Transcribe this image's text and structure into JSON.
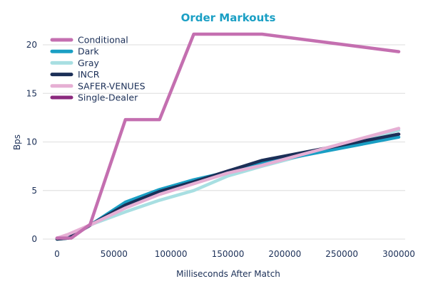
{
  "chart_data": {
    "type": "line",
    "title": "Order Markouts",
    "xlabel": "Milliseconds After Match",
    "ylabel": "Bps",
    "xlim": [
      0,
      300000
    ],
    "ylim": [
      0,
      21.5
    ],
    "x_ticks": [
      0,
      50000,
      100000,
      150000,
      200000,
      250000,
      300000
    ],
    "y_ticks": [
      0,
      5,
      10,
      15,
      20
    ],
    "grid": "horizontal",
    "legend_position": "top-left",
    "title_color": "#1a9fc4",
    "series": [
      {
        "name": "Single-Dealer",
        "color": "#8b2a7e",
        "x": [
          0,
          10000,
          30000,
          60000,
          90000,
          120000,
          150000,
          180000,
          300000
        ],
        "y": [
          0.1,
          0.1,
          1.5,
          3.5,
          4.9,
          5.9,
          7.0,
          8.0,
          10.8
        ]
      },
      {
        "name": "Gray",
        "color": "#a8dfe2",
        "x": [
          0,
          10000,
          30000,
          60000,
          90000,
          120000,
          150000,
          180000,
          300000
        ],
        "y": [
          0.0,
          0.3,
          1.5,
          2.8,
          4.0,
          5.0,
          6.5,
          7.5,
          11.2
        ]
      },
      {
        "name": "Dark",
        "color": "#1a9fc4",
        "x": [
          0,
          10000,
          30000,
          60000,
          90000,
          120000,
          150000,
          180000,
          300000
        ],
        "y": [
          0.0,
          0.1,
          1.5,
          3.8,
          5.1,
          6.1,
          6.9,
          7.8,
          10.5
        ]
      },
      {
        "name": "INCR",
        "color": "#1b2f57",
        "x": [
          0,
          10000,
          30000,
          60000,
          90000,
          120000,
          150000,
          180000,
          300000
        ],
        "y": [
          0.0,
          0.1,
          1.5,
          3.5,
          4.9,
          5.9,
          7.0,
          8.1,
          10.8
        ]
      },
      {
        "name": "SAFER-VENUES",
        "color": "#e6afd4",
        "x": [
          0,
          10000,
          30000,
          60000,
          90000,
          120000,
          150000,
          180000,
          300000
        ],
        "y": [
          0.1,
          0.5,
          1.5,
          3.2,
          4.6,
          5.7,
          6.8,
          7.6,
          11.4
        ]
      },
      {
        "name": "Conditional",
        "color": "#c46fb0",
        "x": [
          0,
          12500,
          29000,
          60000,
          90000,
          120000,
          180000,
          300000
        ],
        "y": [
          0.1,
          0.1,
          1.5,
          12.3,
          12.3,
          21.1,
          21.1,
          19.3
        ]
      }
    ],
    "legend_order": [
      "Conditional",
      "Dark",
      "Gray",
      "INCR",
      "SAFER-VENUES",
      "Single-Dealer"
    ]
  }
}
